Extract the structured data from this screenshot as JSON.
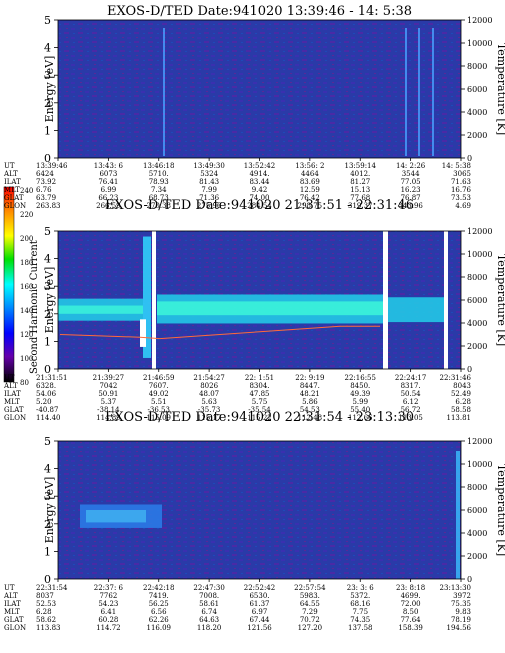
{
  "colorbar": {
    "label": "Second Harmonic Current",
    "ticks": [
      "240",
      "220",
      "200",
      "180",
      "160",
      "140",
      "120",
      "100",
      "80"
    ]
  },
  "chart_data": [
    {
      "type": "heatmap",
      "title": "EXOS-D/TED   Date:941020  13:39:46 - 14: 5:38",
      "ylabel": "Energy [eV]",
      "y2label": "Temperature [K]",
      "ylim": [
        0,
        5
      ],
      "y2lim": [
        0,
        12000
      ],
      "yticks": [
        "0",
        "1",
        "2",
        "3",
        "4",
        "5"
      ],
      "y2ticks": [
        "0",
        "2000",
        "4000",
        "6000",
        "8000",
        "10000",
        "12000"
      ],
      "table": {
        "row_labels": [
          "UT",
          "ALT",
          "ILAT",
          "MLT",
          "GLAT",
          "GLON"
        ],
        "columns": [
          [
            "13:39:46",
            "6424",
            "73.92",
            "6.76",
            "63.79",
            "263.83"
          ],
          [
            "13:43: 6",
            "6073",
            "76.41",
            "6.99",
            "66.23",
            "266.59"
          ],
          [
            "13:46:18",
            "5710.",
            "78.93",
            "7.34",
            "68.73",
            "270.38"
          ],
          [
            "13:49:30",
            "5324",
            "81.43",
            "7.99",
            "71.36",
            "275.96"
          ],
          [
            "13:52:42",
            "4914.",
            "83.44",
            "9.42",
            "74.00",
            "284.54"
          ],
          [
            "13:56: 2",
            "4464",
            "83.69",
            "12.59",
            "76.42",
            "298.75"
          ],
          [
            "13:59:14",
            "4012.",
            "81.27",
            "15.13",
            "77.68",
            "319.37"
          ],
          [
            "14: 2:26",
            "3544",
            "77.05",
            "16.23",
            "76.87",
            "343.96"
          ],
          [
            "14: 5:38",
            "3065",
            "71.63",
            "16.76",
            "73.53",
            "4.69"
          ]
        ]
      },
      "series": []
    },
    {
      "type": "heatmap",
      "title": "EXOS-D/TED   Date:941020  21:31:51 - 22:31:46",
      "ylabel": "Energy [eV]",
      "y2label": "Temperature [K]",
      "ylim": [
        0,
        5
      ],
      "y2lim": [
        0,
        12000
      ],
      "yticks": [
        "0",
        "1",
        "2",
        "3",
        "4",
        "5"
      ],
      "y2ticks": [
        "0",
        "2000",
        "4000",
        "6000",
        "8000",
        "10000",
        "12000"
      ],
      "table": {
        "row_labels": [
          "UT",
          "ALT",
          "ILAT",
          "MLT",
          "GLAT",
          "GLON"
        ],
        "columns": [
          [
            "21:31:51",
            "6328.",
            "54.06",
            "5.20",
            "-40.87",
            "114.40"
          ],
          [
            "21:39:27",
            "7042",
            "50.91",
            "5.37",
            "-38.14",
            "114.89"
          ],
          [
            "21:46:59",
            "7607.",
            "49.02",
            "5.51",
            "-36.53",
            "115.09"
          ],
          [
            "21:54:27",
            "8026",
            "48.07",
            "5.63",
            "-35.73",
            "115.17"
          ],
          [
            "22: 1:51",
            "8304.",
            "47.85",
            "5.75",
            "-35.54",
            "115.22"
          ],
          [
            "22: 9:19",
            "8447.",
            "48.21",
            "5.86",
            "54.53",
            "112.48"
          ],
          [
            "22:16:55",
            "8450.",
            "49.39",
            "5.99",
            "55.40",
            "112.66"
          ],
          [
            "22:24:17",
            "8317.",
            "50.54",
            "6.12",
            "56.72",
            "113.05"
          ],
          [
            "22:31:46",
            "8043",
            "52.49",
            "6.28",
            "58.58",
            "113.81"
          ]
        ]
      },
      "series": []
    },
    {
      "type": "heatmap",
      "title": "EXOS-D/TED   Date:941020  22:31:54 - 23:13:30",
      "ylabel": "Energy [eV]",
      "y2label": "Temperature [K]",
      "ylim": [
        0,
        5
      ],
      "y2lim": [
        0,
        12000
      ],
      "yticks": [
        "0",
        "1",
        "2",
        "3",
        "4",
        "5"
      ],
      "y2ticks": [
        "0",
        "2000",
        "4000",
        "6000",
        "8000",
        "10000",
        "12000"
      ],
      "table": {
        "row_labels": [
          "UT",
          "ALT",
          "ILAT",
          "MLT",
          "GLAT",
          "GLON"
        ],
        "columns": [
          [
            "22:31:54",
            "8037",
            "52.53",
            "6.28",
            "58.62",
            "113.83"
          ],
          [
            "22:37: 6",
            "7762",
            "54.23",
            "6.41",
            "60.28",
            "114.72"
          ],
          [
            "22:42:18",
            "7419.",
            "56.25",
            "6.56",
            "62.26",
            "116.09"
          ],
          [
            "22:47:30",
            "7008.",
            "58.61",
            "6.74",
            "64.63",
            "118.20"
          ],
          [
            "22:52:42",
            "6530.",
            "61.37",
            "6.97",
            "67.44",
            "121.56"
          ],
          [
            "22:57:54",
            "5983.",
            "64.55",
            "7.29",
            "70.72",
            "127.20"
          ],
          [
            "23: 3: 6",
            "5372.",
            "68.16",
            "7.75",
            "74.35",
            "137.58"
          ],
          [
            "23: 8:18",
            "4699.",
            "72.00",
            "8.50",
            "77.64",
            "158.39"
          ],
          [
            "23:13:30",
            "3972",
            "75.35",
            "9.83",
            "78.19",
            "194.56"
          ]
        ]
      },
      "series": []
    }
  ]
}
